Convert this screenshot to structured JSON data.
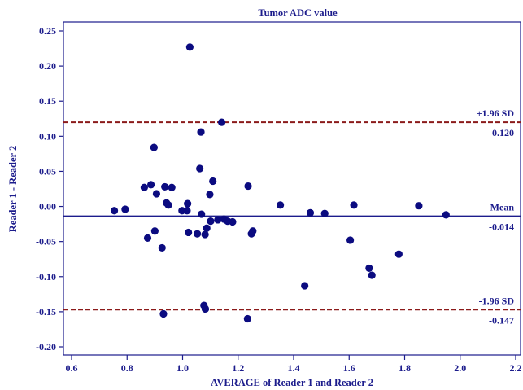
{
  "chart_data": {
    "type": "scatter",
    "title": "Tumor ADC value",
    "xlabel": "AVERAGE of Reader 1 and Reader 2",
    "ylabel": "Reader 1 - Reader 2",
    "xlim": [
      0.6,
      2.2
    ],
    "ylim": [
      -0.2,
      0.25
    ],
    "x_ticks": [
      "0.6",
      "0.8",
      "1.0",
      "1.2",
      "1.4",
      "1.6",
      "1.8",
      "2.0",
      "2.2"
    ],
    "y_ticks": [
      "0.25",
      "0.20",
      "0.15",
      "0.10",
      "0.05",
      "0.00",
      "-0.05",
      "-0.10",
      "-0.15",
      "-0.20"
    ],
    "reference_lines": [
      {
        "label": "+1.96 SD",
        "value": 0.12,
        "value_text": "0.120",
        "style": "dashed",
        "color": "#8b1a1a"
      },
      {
        "label": "Mean",
        "value": -0.014,
        "value_text": "-0.014",
        "style": "solid",
        "color": "#1c1c8c"
      },
      {
        "label": "-1.96 SD",
        "value": -0.147,
        "value_text": "-0.147",
        "style": "dashed",
        "color": "#8b1a1a"
      }
    ],
    "point_color": "#0b0b80",
    "points": [
      [
        0.754,
        -0.006
      ],
      [
        0.793,
        -0.004
      ],
      [
        0.862,
        0.027
      ],
      [
        0.886,
        0.031
      ],
      [
        0.897,
        0.084
      ],
      [
        0.906,
        0.018
      ],
      [
        0.874,
        -0.045
      ],
      [
        0.9,
        -0.035
      ],
      [
        0.926,
        -0.059
      ],
      [
        0.931,
        -0.153
      ],
      [
        0.936,
        0.028
      ],
      [
        0.942,
        0.005
      ],
      [
        0.949,
        0.002
      ],
      [
        0.961,
        0.027
      ],
      [
        0.998,
        -0.006
      ],
      [
        1.018,
        0.004
      ],
      [
        1.016,
        -0.006
      ],
      [
        1.021,
        -0.037
      ],
      [
        1.026,
        0.227
      ],
      [
        1.053,
        -0.039
      ],
      [
        1.062,
        0.054
      ],
      [
        1.066,
        0.106
      ],
      [
        1.068,
        -0.011
      ],
      [
        1.077,
        -0.141
      ],
      [
        1.082,
        -0.146
      ],
      [
        1.081,
        -0.04
      ],
      [
        1.087,
        -0.031
      ],
      [
        1.098,
        0.017
      ],
      [
        1.101,
        -0.021
      ],
      [
        1.109,
        0.036
      ],
      [
        1.127,
        -0.019
      ],
      [
        1.141,
        0.12
      ],
      [
        1.149,
        -0.018
      ],
      [
        1.162,
        -0.021
      ],
      [
        1.18,
        -0.022
      ],
      [
        1.234,
        -0.16
      ],
      [
        1.236,
        0.029
      ],
      [
        1.248,
        -0.039
      ],
      [
        1.253,
        -0.035
      ],
      [
        1.352,
        0.002
      ],
      [
        1.44,
        -0.113
      ],
      [
        1.46,
        -0.009
      ],
      [
        1.512,
        -0.01
      ],
      [
        1.604,
        -0.048
      ],
      [
        1.617,
        0.002
      ],
      [
        1.672,
        -0.088
      ],
      [
        1.682,
        -0.098
      ],
      [
        1.779,
        -0.068
      ],
      [
        1.851,
        0.001
      ],
      [
        1.949,
        -0.012
      ]
    ]
  }
}
